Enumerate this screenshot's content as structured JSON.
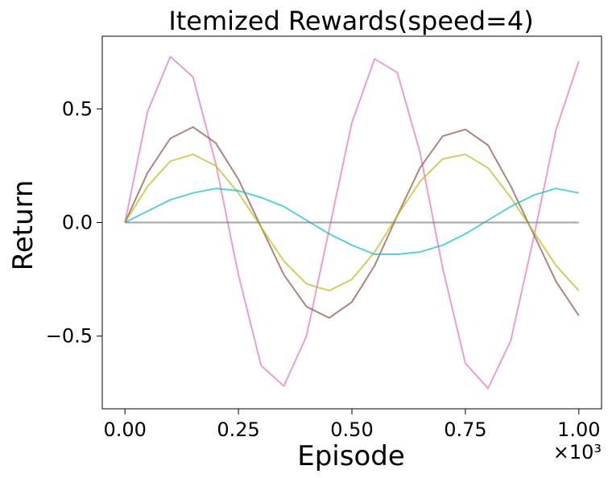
{
  "chart_data": {
    "type": "line",
    "title": "Itemized Rewards(speed=4)",
    "xlabel": "Episode",
    "ylabel": "Return",
    "x_multiplier": "×10³",
    "xlim": [
      -0.05,
      1.05
    ],
    "ylim": [
      -0.82,
      0.82
    ],
    "x_ticks": [
      0.0,
      0.25,
      0.5,
      0.75,
      1.0
    ],
    "x_tick_labels": [
      "0.00",
      "0.25",
      "0.50",
      "0.75",
      "1.00"
    ],
    "y_ticks": [
      -0.5,
      0.0,
      0.5
    ],
    "y_tick_labels": [
      "−0.5",
      "0.0",
      "0.5"
    ],
    "grid": false,
    "legend": "none",
    "series": [
      {
        "color": "#e377c2",
        "x": [
          0.0,
          0.05,
          0.1,
          0.15,
          0.2,
          0.25,
          0.3,
          0.35,
          0.4,
          0.45,
          0.5,
          0.55,
          0.6,
          0.65,
          0.7,
          0.75,
          0.8,
          0.85,
          0.9,
          0.95,
          1.0
        ],
        "values": [
          0.0,
          0.49,
          0.73,
          0.64,
          0.26,
          -0.23,
          -0.63,
          -0.72,
          -0.5,
          -0.03,
          0.44,
          0.72,
          0.66,
          0.31,
          -0.2,
          -0.62,
          -0.73,
          -0.52,
          -0.07,
          0.41,
          0.71
        ]
      },
      {
        "color": "#8c564b",
        "x": [
          0.0,
          0.05,
          0.1,
          0.15,
          0.2,
          0.25,
          0.3,
          0.35,
          0.4,
          0.45,
          0.5,
          0.55,
          0.6,
          0.65,
          0.7,
          0.75,
          0.8,
          0.85,
          0.9,
          0.95,
          1.0
        ],
        "values": [
          0.0,
          0.22,
          0.37,
          0.42,
          0.35,
          0.19,
          -0.02,
          -0.23,
          -0.37,
          -0.42,
          -0.35,
          -0.19,
          0.03,
          0.24,
          0.38,
          0.41,
          0.34,
          0.16,
          -0.05,
          -0.26,
          -0.41
        ]
      },
      {
        "color": "#bcbd22",
        "x": [
          0.0,
          0.05,
          0.1,
          0.15,
          0.2,
          0.25,
          0.3,
          0.35,
          0.4,
          0.45,
          0.5,
          0.55,
          0.6,
          0.65,
          0.7,
          0.75,
          0.8,
          0.85,
          0.9,
          0.95,
          1.0
        ],
        "values": [
          0.0,
          0.16,
          0.27,
          0.3,
          0.25,
          0.13,
          -0.02,
          -0.17,
          -0.27,
          -0.3,
          -0.25,
          -0.13,
          0.03,
          0.18,
          0.28,
          0.3,
          0.24,
          0.11,
          -0.04,
          -0.19,
          -0.3
        ]
      },
      {
        "color": "#17becf",
        "x": [
          0.0,
          0.05,
          0.1,
          0.15,
          0.2,
          0.25,
          0.3,
          0.35,
          0.4,
          0.45,
          0.5,
          0.55,
          0.6,
          0.65,
          0.7,
          0.75,
          0.8,
          0.85,
          0.9,
          0.95,
          1.0
        ],
        "values": [
          0.0,
          0.05,
          0.1,
          0.13,
          0.15,
          0.14,
          0.11,
          0.07,
          0.01,
          -0.05,
          -0.1,
          -0.14,
          -0.14,
          -0.13,
          -0.1,
          -0.05,
          0.01,
          0.07,
          0.12,
          0.15,
          0.13
        ]
      },
      {
        "color": "#7f7f7f",
        "x": [
          0.0,
          0.05,
          0.1,
          0.15,
          0.2,
          0.25,
          0.3,
          0.35,
          0.4,
          0.45,
          0.5,
          0.55,
          0.6,
          0.65,
          0.7,
          0.75,
          0.8,
          0.85,
          0.9,
          0.95,
          1.0
        ],
        "values": [
          0.0,
          0.0,
          0.0,
          0.0,
          0.0,
          0.0,
          0.0,
          0.0,
          0.0,
          0.0,
          0.0,
          0.0,
          0.0,
          0.0,
          0.0,
          0.0,
          0.0,
          0.0,
          0.0,
          0.0,
          0.0
        ]
      }
    ]
  }
}
